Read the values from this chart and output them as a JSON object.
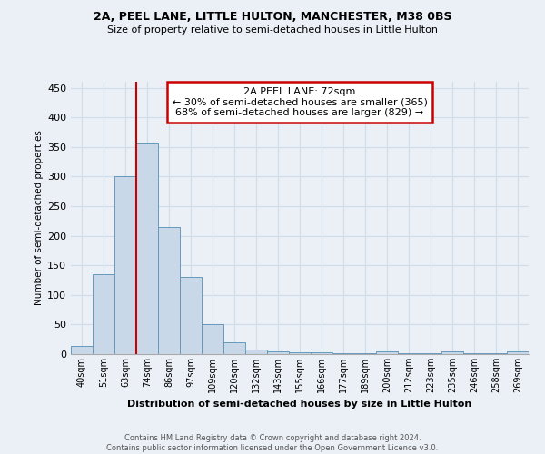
{
  "title1": "2A, PEEL LANE, LITTLE HULTON, MANCHESTER, M38 0BS",
  "title2": "Size of property relative to semi-detached houses in Little Hulton",
  "xlabel": "Distribution of semi-detached houses by size in Little Hulton",
  "ylabel": "Number of semi-detached properties",
  "footnote": "Contains HM Land Registry data © Crown copyright and database right 2024.\nContains public sector information licensed under the Open Government Licence v3.0.",
  "categories": [
    "40sqm",
    "51sqm",
    "63sqm",
    "74sqm",
    "86sqm",
    "97sqm",
    "109sqm",
    "120sqm",
    "132sqm",
    "143sqm",
    "155sqm",
    "166sqm",
    "177sqm",
    "189sqm",
    "200sqm",
    "212sqm",
    "223sqm",
    "235sqm",
    "246sqm",
    "258sqm",
    "269sqm"
  ],
  "values": [
    14,
    135,
    300,
    355,
    215,
    130,
    50,
    20,
    8,
    5,
    3,
    3,
    1,
    1,
    4,
    1,
    1,
    4,
    1,
    1,
    4
  ],
  "bar_color": "#c8d8e8",
  "bar_edge_color": "#6699bb",
  "red_line_index": 3,
  "annotation_title": "2A PEEL LANE: 72sqm",
  "annotation_line1": "← 30% of semi-detached houses are smaller (365)",
  "annotation_line2": "68% of semi-detached houses are larger (829) →",
  "annotation_box_color": "#ffffff",
  "annotation_border_color": "#cc0000",
  "ylim": [
    0,
    460
  ],
  "yticks": [
    0,
    50,
    100,
    150,
    200,
    250,
    300,
    350,
    400,
    450
  ],
  "grid_color": "#d0dce8",
  "bg_color": "#eaf0f6"
}
